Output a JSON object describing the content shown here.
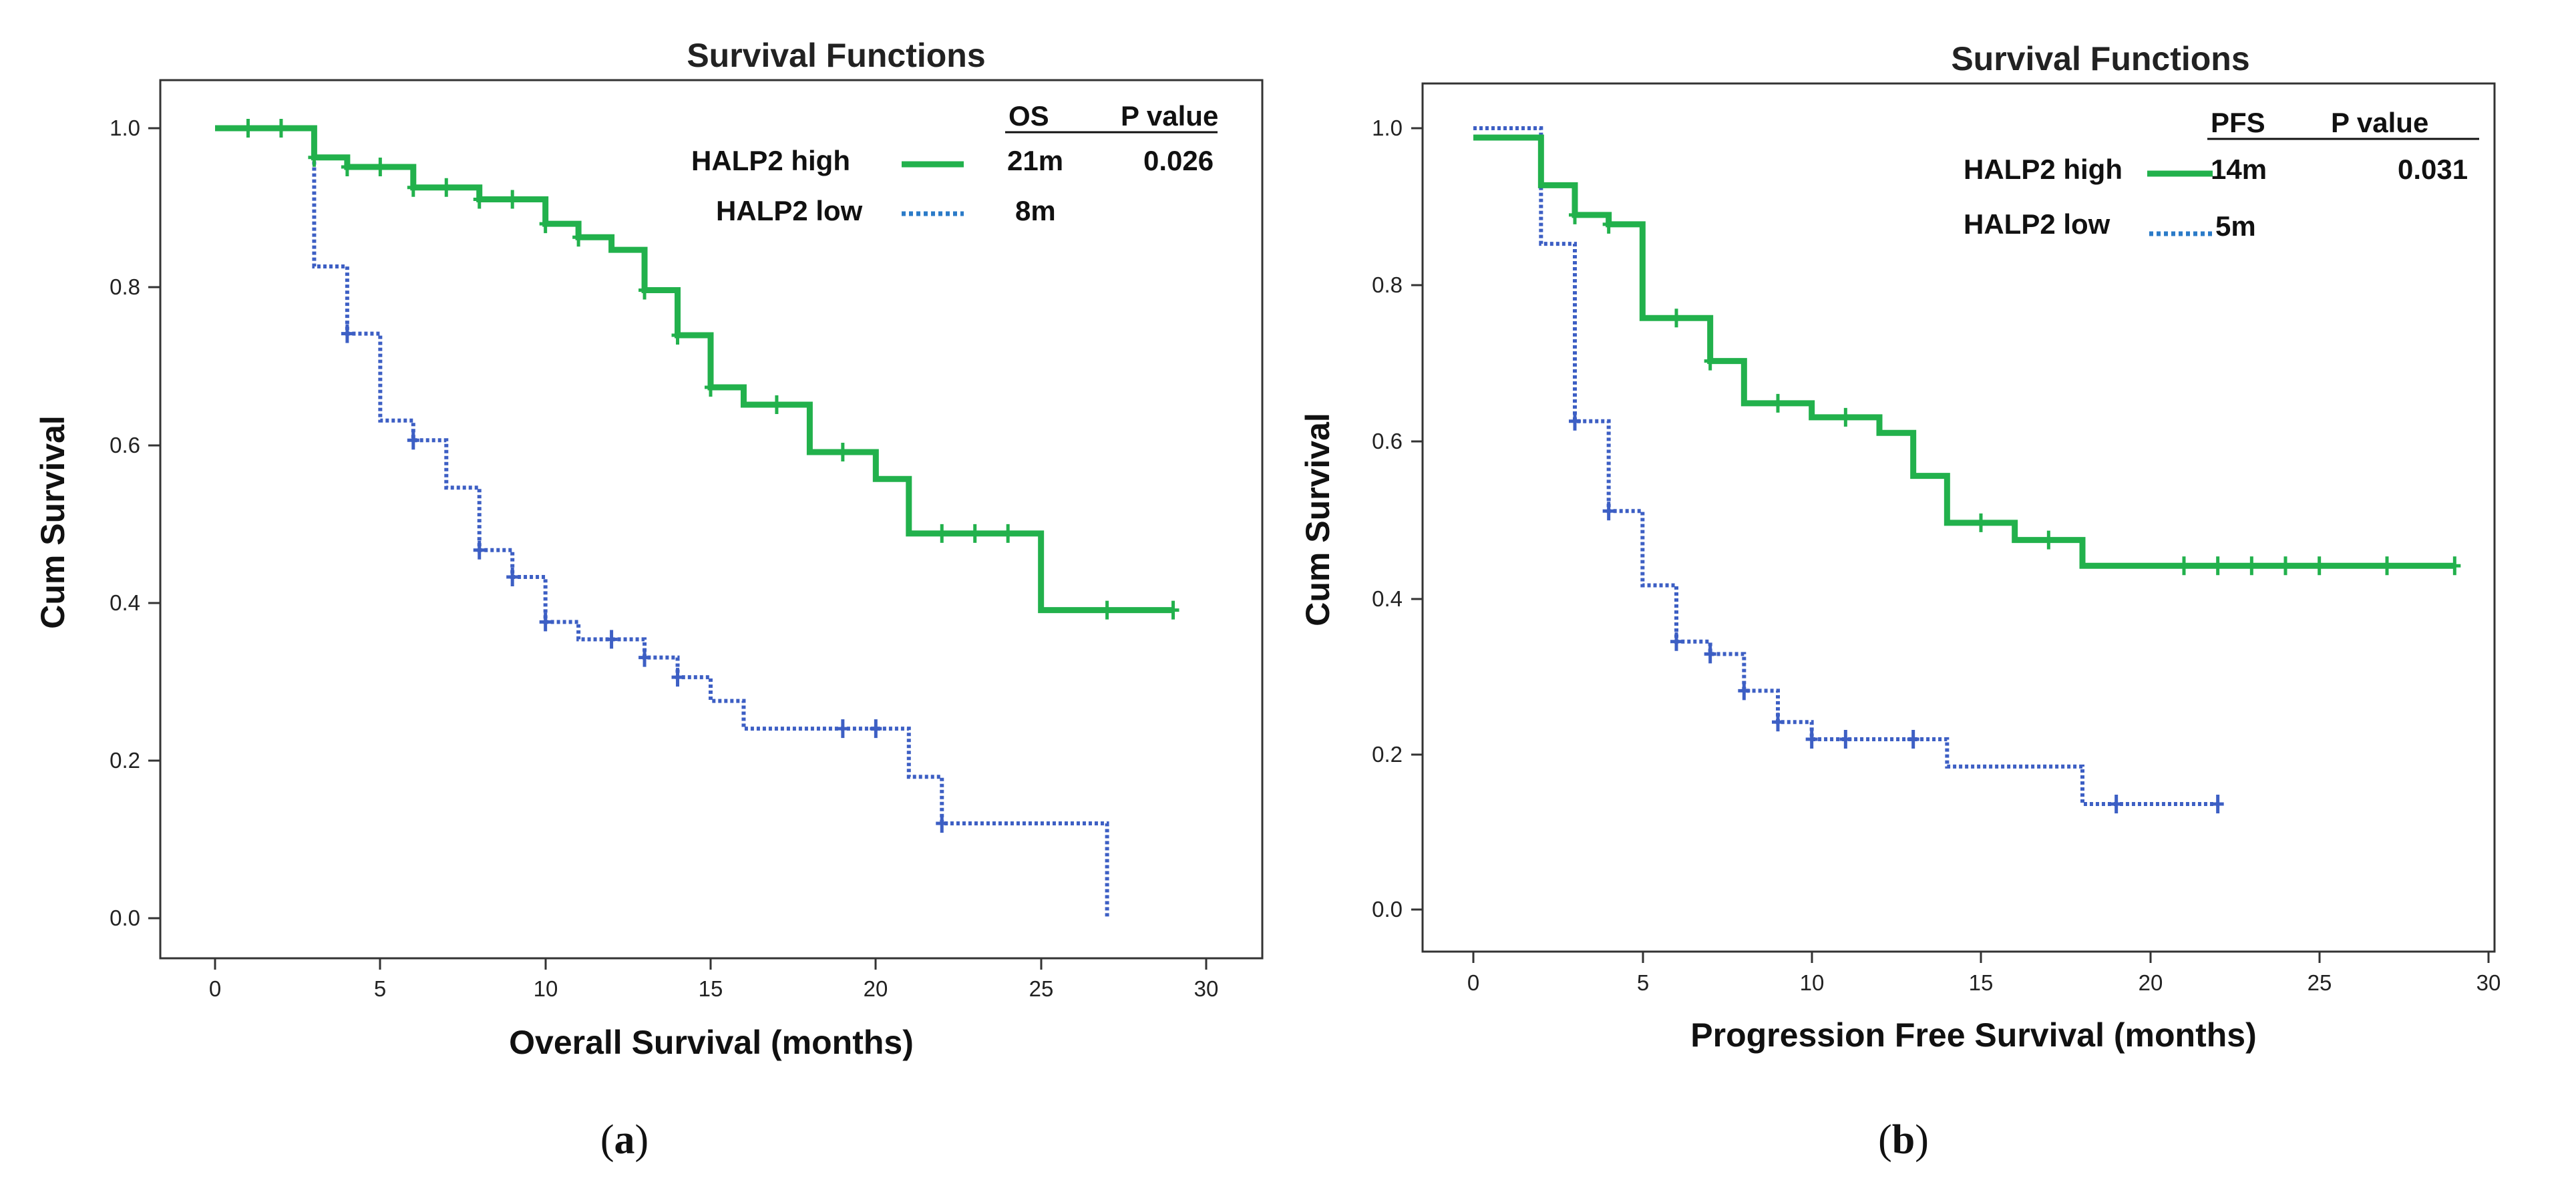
{
  "colors": {
    "high": "#22b14c",
    "low": "#3d5fc4",
    "axis": "#333333",
    "low_legend": "#2b7bc8"
  },
  "chart_data": [
    {
      "type": "line",
      "subtype": "kaplan-meier",
      "title": "Survival Functions",
      "xlabel": "Overall Survival (months)",
      "ylabel": "Cum Survival",
      "xlim": [
        0,
        30
      ],
      "ylim": [
        0,
        1
      ],
      "xticks": [
        "0",
        "5",
        "10",
        "15",
        "20",
        "25",
        "30"
      ],
      "yticks": [
        "0.0",
        "0.2",
        "0.4",
        "0.6",
        "0.8",
        "1.0"
      ],
      "caption_open": "(",
      "caption_letter": "a",
      "caption_close": ")",
      "legend": {
        "col1_header": "OS",
        "col2_header": "P value",
        "high_label": "HALP2 high",
        "low_label": "HALP2 low",
        "high_median": "21m",
        "low_median": "8m",
        "p_value": "0.026"
      },
      "series": [
        {
          "name": "HALP2 high",
          "style": "solid",
          "steps": [
            [
              0,
              1.0
            ],
            [
              3,
              0.963
            ],
            [
              4,
              0.951
            ],
            [
              6,
              0.925
            ],
            [
              8,
              0.91
            ],
            [
              10,
              0.879
            ],
            [
              11,
              0.862
            ],
            [
              12,
              0.846
            ],
            [
              13,
              0.795
            ],
            [
              14,
              0.738
            ],
            [
              15,
              0.672
            ],
            [
              16,
              0.65
            ],
            [
              18,
              0.59
            ],
            [
              20,
              0.556
            ],
            [
              21,
              0.487
            ],
            [
              25,
              0.39
            ]
          ],
          "end_x": 29,
          "censors": [
            [
              1,
              1.0
            ],
            [
              2,
              1.0
            ],
            [
              3,
              0.963
            ],
            [
              4,
              0.951
            ],
            [
              5,
              0.951
            ],
            [
              6,
              0.925
            ],
            [
              7,
              0.925
            ],
            [
              8,
              0.91
            ],
            [
              9,
              0.91
            ],
            [
              10,
              0.879
            ],
            [
              11,
              0.862
            ],
            [
              13,
              0.795
            ],
            [
              14,
              0.738
            ],
            [
              15,
              0.672
            ],
            [
              17,
              0.65
            ],
            [
              19,
              0.59
            ],
            [
              22,
              0.487
            ],
            [
              23,
              0.487
            ],
            [
              24,
              0.487
            ],
            [
              27,
              0.39
            ],
            [
              29,
              0.39
            ]
          ]
        },
        {
          "name": "HALP2 low",
          "style": "dotted",
          "steps": [
            [
              0,
              1.0
            ],
            [
              3,
              0.825
            ],
            [
              4,
              0.74
            ],
            [
              5,
              0.63
            ],
            [
              6,
              0.605
            ],
            [
              7,
              0.545
            ],
            [
              8,
              0.466
            ],
            [
              9,
              0.432
            ],
            [
              10,
              0.375
            ],
            [
              11,
              0.353
            ],
            [
              13,
              0.33
            ],
            [
              14,
              0.305
            ],
            [
              15,
              0.275
            ],
            [
              16,
              0.24
            ],
            [
              21,
              0.179
            ],
            [
              22,
              0.12
            ],
            [
              27,
              0.0
            ]
          ],
          "end_x": 27,
          "censors": [
            [
              4,
              0.74
            ],
            [
              6,
              0.605
            ],
            [
              8,
              0.466
            ],
            [
              9,
              0.432
            ],
            [
              10,
              0.375
            ],
            [
              12,
              0.353
            ],
            [
              13,
              0.33
            ],
            [
              14,
              0.305
            ],
            [
              19,
              0.24
            ],
            [
              20,
              0.24
            ],
            [
              22,
              0.12
            ]
          ]
        }
      ]
    },
    {
      "type": "line",
      "subtype": "kaplan-meier",
      "title": "Survival Functions",
      "xlabel": "Progression Free Survival (months)",
      "ylabel": "Cum Survival",
      "xlim": [
        0,
        30
      ],
      "ylim": [
        0,
        1
      ],
      "xticks": [
        "0",
        "5",
        "10",
        "15",
        "20",
        "25",
        "30"
      ],
      "yticks": [
        "0.0",
        "0.2",
        "0.4",
        "0.6",
        "0.8",
        "1.0"
      ],
      "caption_open": "(",
      "caption_letter": "b",
      "caption_close": ")",
      "legend": {
        "col1_header": "PFS",
        "col2_header": "P value",
        "high_label": "HALP2 high",
        "low_label": "HALP2 low",
        "high_median": "14m",
        "low_median": "5m",
        "p_value": "0.031"
      },
      "series": [
        {
          "name": "HALP2 high",
          "style": "solid",
          "steps": [
            [
              0,
              0.988
            ],
            [
              2,
              0.927
            ],
            [
              3,
              0.889
            ],
            [
              4,
              0.877
            ],
            [
              5,
              0.757
            ],
            [
              7,
              0.702
            ],
            [
              8,
              0.648
            ],
            [
              10,
              0.63
            ],
            [
              12,
              0.61
            ],
            [
              13,
              0.555
            ],
            [
              14,
              0.495
            ],
            [
              16,
              0.473
            ],
            [
              18,
              0.44
            ]
          ],
          "end_x": 29,
          "censors": [
            [
              3,
              0.889
            ],
            [
              4,
              0.877
            ],
            [
              6,
              0.757
            ],
            [
              7,
              0.702
            ],
            [
              9,
              0.648
            ],
            [
              11,
              0.63
            ],
            [
              15,
              0.495
            ],
            [
              17,
              0.473
            ],
            [
              21,
              0.44
            ],
            [
              22,
              0.44
            ],
            [
              23,
              0.44
            ],
            [
              24,
              0.44
            ],
            [
              25,
              0.44
            ],
            [
              27,
              0.44
            ],
            [
              29,
              0.44
            ]
          ]
        },
        {
          "name": "HALP2 low",
          "style": "dotted",
          "steps": [
            [
              0,
              1.0
            ],
            [
              2,
              0.852
            ],
            [
              3,
              0.625
            ],
            [
              4,
              0.51
            ],
            [
              5,
              0.415
            ],
            [
              6,
              0.343
            ],
            [
              7,
              0.327
            ],
            [
              8,
              0.28
            ],
            [
              9,
              0.24
            ],
            [
              10,
              0.218
            ],
            [
              14,
              0.183
            ],
            [
              18,
              0.135
            ]
          ],
          "end_x": 22,
          "censors": [
            [
              3,
              0.625
            ],
            [
              4,
              0.51
            ],
            [
              6,
              0.343
            ],
            [
              7,
              0.327
            ],
            [
              8,
              0.28
            ],
            [
              9,
              0.24
            ],
            [
              10,
              0.218
            ],
            [
              11,
              0.218
            ],
            [
              13,
              0.218
            ],
            [
              19,
              0.135
            ],
            [
              22,
              0.135
            ]
          ]
        }
      ]
    }
  ]
}
